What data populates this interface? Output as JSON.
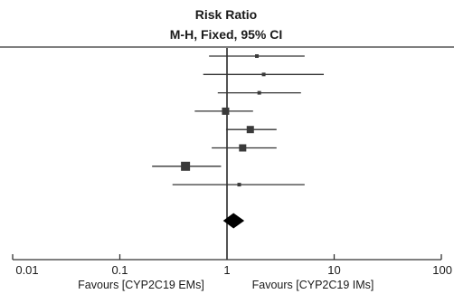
{
  "chart_data": {
    "type": "forest",
    "header": {
      "title": "Risk Ratio",
      "subtitle": "M-H, Fixed, 95% CI"
    },
    "x_scale": "log",
    "xlim": [
      0.01,
      100
    ],
    "x_ticks": [
      {
        "value": 0.01,
        "label": "0.01"
      },
      {
        "value": 0.1,
        "label": "0.1"
      },
      {
        "value": 1,
        "label": "1"
      },
      {
        "value": 10,
        "label": "10"
      },
      {
        "value": 100,
        "label": "100"
      }
    ],
    "reference_line": 1,
    "favours": {
      "left": "Favours [CYP2C19 EMs]",
      "right": "Favours [CYP2C19 IMs]"
    },
    "studies": [
      {
        "estimate": 1.9,
        "lower": 0.68,
        "upper": 5.3,
        "weight": "small"
      },
      {
        "estimate": 2.2,
        "lower": 0.6,
        "upper": 8.0,
        "weight": "small"
      },
      {
        "estimate": 2.0,
        "lower": 0.82,
        "upper": 4.9,
        "weight": "small"
      },
      {
        "estimate": 0.97,
        "lower": 0.5,
        "upper": 1.75,
        "weight": "medium"
      },
      {
        "estimate": 1.65,
        "lower": 0.98,
        "upper": 2.9,
        "weight": "medium"
      },
      {
        "estimate": 1.4,
        "lower": 0.72,
        "upper": 2.9,
        "weight": "medium"
      },
      {
        "estimate": 0.41,
        "lower": 0.2,
        "upper": 0.88,
        "weight": "large"
      },
      {
        "estimate": 1.3,
        "lower": 0.31,
        "upper": 5.3,
        "weight": "small"
      }
    ],
    "pooled": {
      "estimate": 1.15,
      "lower": 0.92,
      "upper": 1.45
    }
  }
}
